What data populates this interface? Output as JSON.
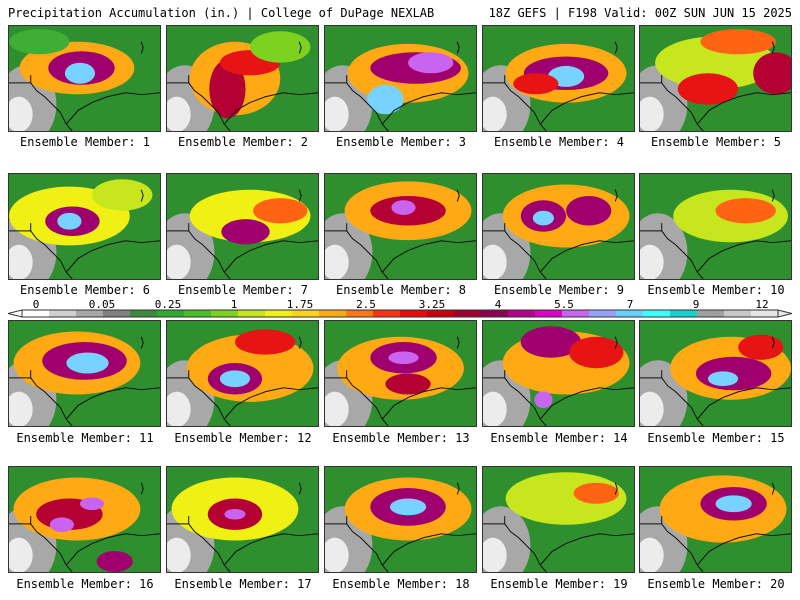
{
  "header": {
    "left": "Precipitation Accumulation (in.) | College of DuPage NEXLAB",
    "right": "18Z GEFS | F198 Valid: 00Z SUN JUN 15 2025"
  },
  "caption_prefix": "Ensemble Member: ",
  "members": [
    {
      "id": 1,
      "caption": "Ensemble Member: 1",
      "blobs": [
        [
          0.45,
          0.4,
          0.38,
          0.25,
          2.2
        ],
        [
          0.48,
          0.4,
          0.22,
          0.16,
          3.6
        ],
        [
          0.47,
          0.45,
          0.1,
          0.1,
          4.5
        ],
        [
          0.2,
          0.15,
          0.2,
          0.12,
          1.2
        ]
      ]
    },
    {
      "id": 2,
      "caption": "Ensemble Member: 2",
      "blobs": [
        [
          0.45,
          0.5,
          0.3,
          0.35,
          2.2
        ],
        [
          0.4,
          0.6,
          0.12,
          0.28,
          3.3
        ],
        [
          0.55,
          0.35,
          0.2,
          0.12,
          3.0
        ],
        [
          0.75,
          0.2,
          0.2,
          0.15,
          1.5
        ]
      ]
    },
    {
      "id": 3,
      "caption": "Ensemble Member: 3",
      "blobs": [
        [
          0.55,
          0.45,
          0.4,
          0.28,
          2.2
        ],
        [
          0.6,
          0.4,
          0.3,
          0.15,
          3.5
        ],
        [
          0.4,
          0.7,
          0.12,
          0.14,
          4.3
        ],
        [
          0.7,
          0.35,
          0.15,
          0.1,
          4.0
        ]
      ]
    },
    {
      "id": 4,
      "caption": "Ensemble Member: 4",
      "blobs": [
        [
          0.55,
          0.45,
          0.4,
          0.28,
          2.2
        ],
        [
          0.55,
          0.45,
          0.28,
          0.16,
          3.5
        ],
        [
          0.55,
          0.48,
          0.12,
          0.1,
          4.4
        ],
        [
          0.35,
          0.55,
          0.15,
          0.1,
          3.0
        ]
      ]
    },
    {
      "id": 5,
      "caption": "Ensemble Member: 5",
      "blobs": [
        [
          0.5,
          0.35,
          0.4,
          0.25,
          1.9
        ],
        [
          0.9,
          0.45,
          0.15,
          0.2,
          3.3
        ],
        [
          0.45,
          0.6,
          0.2,
          0.15,
          2.8
        ],
        [
          0.65,
          0.15,
          0.25,
          0.12,
          2.5
        ]
      ]
    },
    {
      "id": 6,
      "caption": "Ensemble Member: 6",
      "blobs": [
        [
          0.4,
          0.4,
          0.4,
          0.28,
          2.1
        ],
        [
          0.42,
          0.45,
          0.18,
          0.14,
          3.4
        ],
        [
          0.4,
          0.45,
          0.08,
          0.08,
          4.5
        ],
        [
          0.75,
          0.2,
          0.2,
          0.15,
          1.8
        ]
      ]
    },
    {
      "id": 7,
      "caption": "Ensemble Member: 7",
      "blobs": [
        [
          0.55,
          0.4,
          0.4,
          0.25,
          2.0
        ],
        [
          0.52,
          0.55,
          0.16,
          0.12,
          3.4
        ],
        [
          0.75,
          0.35,
          0.18,
          0.12,
          2.6
        ]
      ]
    },
    {
      "id": 8,
      "caption": "Ensemble Member: 8",
      "blobs": [
        [
          0.55,
          0.35,
          0.42,
          0.28,
          2.2
        ],
        [
          0.55,
          0.35,
          0.25,
          0.14,
          3.3
        ],
        [
          0.52,
          0.32,
          0.08,
          0.07,
          4.2
        ]
      ]
    },
    {
      "id": 9,
      "caption": "Ensemble Member: 9",
      "blobs": [
        [
          0.55,
          0.4,
          0.42,
          0.3,
          2.3
        ],
        [
          0.4,
          0.4,
          0.15,
          0.15,
          3.5
        ],
        [
          0.7,
          0.35,
          0.15,
          0.14,
          3.5
        ],
        [
          0.4,
          0.42,
          0.07,
          0.07,
          4.3
        ]
      ]
    },
    {
      "id": 10,
      "caption": "Ensemble Member: 10",
      "blobs": [
        [
          0.6,
          0.4,
          0.38,
          0.25,
          1.9
        ],
        [
          0.7,
          0.35,
          0.2,
          0.12,
          2.6
        ]
      ]
    },
    {
      "id": 11,
      "caption": "Ensemble Member: 11",
      "blobs": [
        [
          0.45,
          0.4,
          0.42,
          0.3,
          2.3
        ],
        [
          0.5,
          0.38,
          0.28,
          0.18,
          3.4
        ],
        [
          0.52,
          0.4,
          0.14,
          0.1,
          4.4
        ]
      ]
    },
    {
      "id": 12,
      "caption": "Ensemble Member: 12",
      "blobs": [
        [
          0.55,
          0.45,
          0.42,
          0.32,
          2.2
        ],
        [
          0.45,
          0.55,
          0.18,
          0.15,
          3.4
        ],
        [
          0.45,
          0.55,
          0.1,
          0.08,
          4.3
        ],
        [
          0.65,
          0.2,
          0.2,
          0.12,
          2.8
        ]
      ]
    },
    {
      "id": 13,
      "caption": "Ensemble Member: 13",
      "blobs": [
        [
          0.5,
          0.45,
          0.42,
          0.3,
          2.2
        ],
        [
          0.52,
          0.35,
          0.22,
          0.15,
          3.4
        ],
        [
          0.52,
          0.35,
          0.1,
          0.06,
          4.2
        ],
        [
          0.55,
          0.6,
          0.15,
          0.1,
          3.2
        ]
      ]
    },
    {
      "id": 14,
      "caption": "Ensemble Member: 14",
      "blobs": [
        [
          0.55,
          0.4,
          0.42,
          0.3,
          2.3
        ],
        [
          0.45,
          0.2,
          0.2,
          0.15,
          3.4
        ],
        [
          0.4,
          0.75,
          0.06,
          0.08,
          4.0
        ],
        [
          0.75,
          0.3,
          0.18,
          0.15,
          2.8
        ]
      ]
    },
    {
      "id": 15,
      "caption": "Ensemble Member: 15",
      "blobs": [
        [
          0.6,
          0.45,
          0.4,
          0.3,
          2.3
        ],
        [
          0.62,
          0.5,
          0.25,
          0.16,
          3.4
        ],
        [
          0.55,
          0.55,
          0.1,
          0.07,
          4.3
        ],
        [
          0.8,
          0.25,
          0.15,
          0.12,
          2.8
        ]
      ]
    },
    {
      "id": 16,
      "caption": "Ensemble Member: 16",
      "blobs": [
        [
          0.45,
          0.4,
          0.42,
          0.3,
          2.2
        ],
        [
          0.4,
          0.45,
          0.22,
          0.15,
          3.3
        ],
        [
          0.35,
          0.55,
          0.08,
          0.07,
          4.0
        ],
        [
          0.55,
          0.35,
          0.08,
          0.06,
          4.0
        ],
        [
          0.7,
          0.9,
          0.12,
          0.1,
          3.6
        ]
      ]
    },
    {
      "id": 17,
      "caption": "Ensemble Member: 17",
      "blobs": [
        [
          0.45,
          0.4,
          0.42,
          0.3,
          2.1
        ],
        [
          0.45,
          0.45,
          0.18,
          0.15,
          3.3
        ],
        [
          0.45,
          0.45,
          0.07,
          0.05,
          4.0
        ]
      ]
    },
    {
      "id": 18,
      "caption": "Ensemble Member: 18",
      "blobs": [
        [
          0.55,
          0.4,
          0.42,
          0.3,
          2.3
        ],
        [
          0.55,
          0.38,
          0.25,
          0.18,
          3.4
        ],
        [
          0.55,
          0.38,
          0.12,
          0.08,
          4.3
        ]
      ]
    },
    {
      "id": 19,
      "caption": "Ensemble Member: 19",
      "blobs": [
        [
          0.55,
          0.3,
          0.4,
          0.25,
          1.9
        ],
        [
          0.75,
          0.25,
          0.15,
          0.1,
          2.6
        ]
      ]
    },
    {
      "id": 20,
      "caption": "Ensemble Member: 20",
      "blobs": [
        [
          0.55,
          0.4,
          0.42,
          0.32,
          2.3
        ],
        [
          0.62,
          0.35,
          0.22,
          0.16,
          3.4
        ],
        [
          0.62,
          0.35,
          0.12,
          0.08,
          4.5
        ]
      ]
    }
  ],
  "colorbar": {
    "labels": [
      "0",
      "0.05",
      "0.25",
      "1",
      "1.75",
      "2.5",
      "3.25",
      "4",
      "5.5",
      "7",
      "9",
      "12"
    ],
    "colors": [
      "#ffffff",
      "#d0d0d0",
      "#a8a8a8",
      "#808080",
      "#3a8c3a",
      "#32a832",
      "#4cbe28",
      "#7cd21e",
      "#c8e61e",
      "#f0f014",
      "#ffd21e",
      "#ffaa14",
      "#ff7814",
      "#ff3214",
      "#e60a0a",
      "#c8000a",
      "#a0002d",
      "#8c0050",
      "#b4008c",
      "#dc00c8",
      "#c864f0",
      "#96a0ff",
      "#64d2ff",
      "#3cffff",
      "#14d2d2",
      "#a0a0a0",
      "#c8c8c8",
      "#e6e6e6"
    ]
  },
  "map_colors": {
    "background": "#2f8f2f",
    "light_green": "#3fae36",
    "gray": "#a8a8a8",
    "white": "#ececec",
    "outline": "#111111"
  }
}
